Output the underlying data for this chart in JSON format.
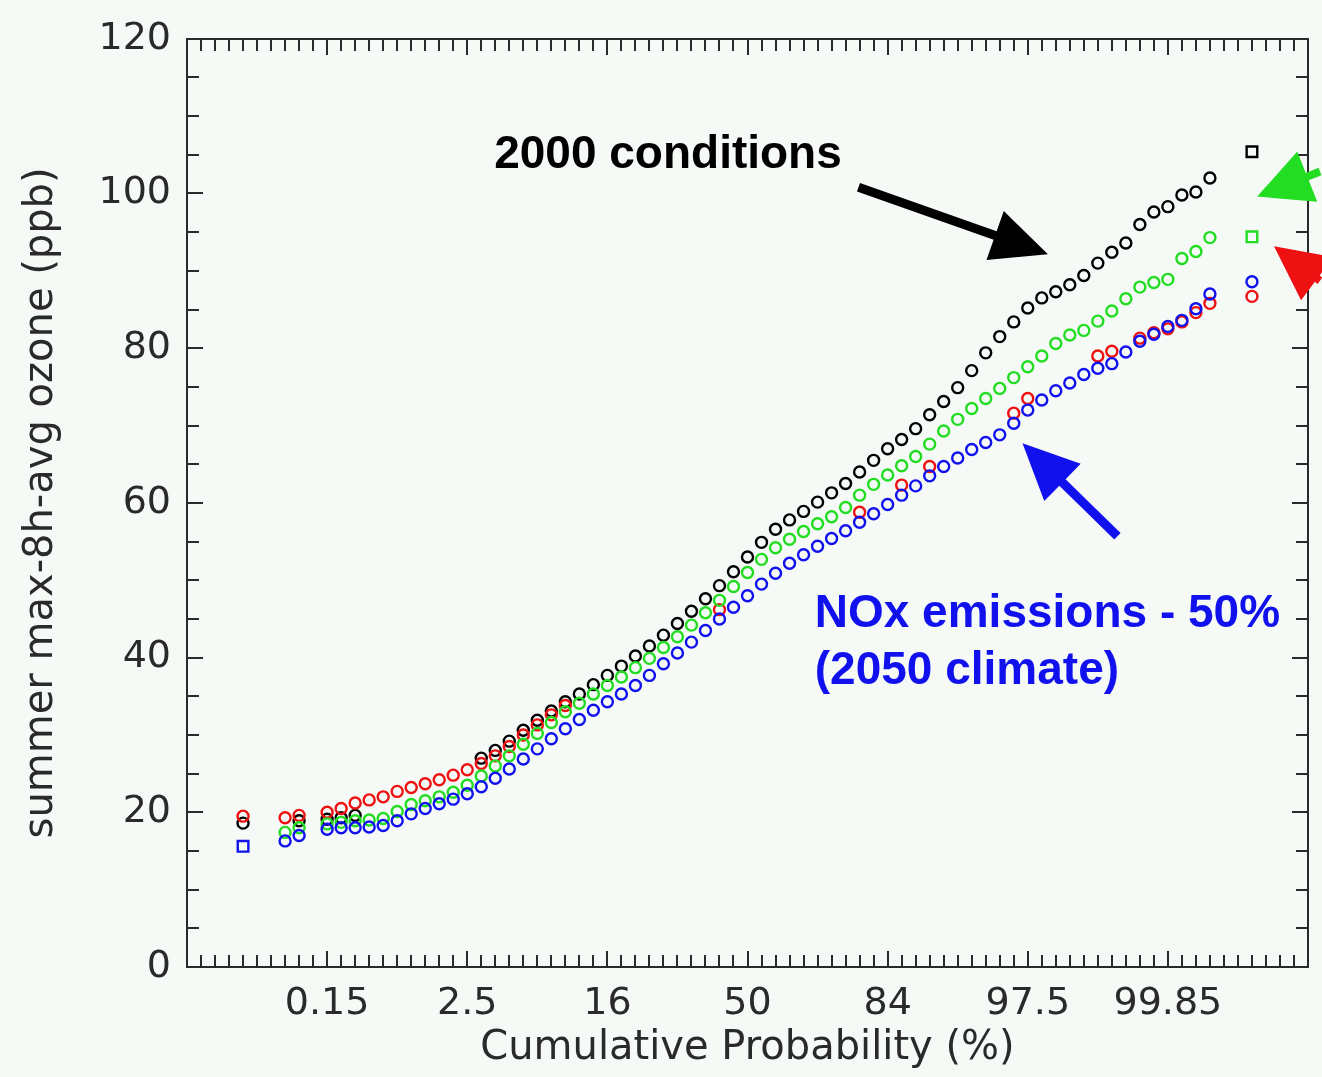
{
  "chart_data": {
    "type": "scatter",
    "xlabel": "Cumulative Probability (%)",
    "ylabel": "summer max-8h-avg ozone (ppb)",
    "marker": "circle",
    "legend": false,
    "categories": [
      null,
      null,
      null,
      null,
      null,
      null,
      null,
      null,
      null,
      null,
      "0.15",
      null,
      null,
      null,
      null,
      null,
      null,
      null,
      null,
      null,
      "2.5",
      null,
      null,
      null,
      null,
      null,
      null,
      null,
      null,
      null,
      "16",
      null,
      null,
      null,
      null,
      null,
      null,
      null,
      null,
      null,
      "50",
      null,
      null,
      null,
      null,
      null,
      null,
      null,
      null,
      null,
      "84",
      null,
      null,
      null,
      null,
      null,
      null,
      null,
      null,
      null,
      "97.5",
      null,
      null,
      null,
      null,
      null,
      null,
      null,
      null,
      null,
      "99.85",
      null,
      null,
      null,
      null,
      null,
      null,
      null,
      null,
      null,
      null
    ],
    "ylim": [
      0,
      120
    ],
    "yticks": [
      0,
      {
        "value": 5,
        "label": null
      },
      {
        "value": 10,
        "label": null
      },
      {
        "value": 15,
        "label": null
      },
      20,
      {
        "value": 25,
        "label": null
      },
      {
        "value": 30,
        "label": null
      },
      {
        "value": 35,
        "label": null
      },
      40,
      {
        "value": 45,
        "label": null
      },
      {
        "value": 50,
        "label": null
      },
      {
        "value": 55,
        "label": null
      },
      60,
      {
        "value": 65,
        "label": null
      },
      {
        "value": 70,
        "label": null
      },
      {
        "value": 75,
        "label": null
      },
      80,
      {
        "value": 85,
        "label": null
      },
      {
        "value": 90,
        "label": null
      },
      {
        "value": 95,
        "label": null
      },
      100,
      {
        "value": 105,
        "label": null
      },
      {
        "value": 110,
        "label": null
      },
      {
        "value": 115,
        "label": null
      },
      120
    ],
    "series": [
      {
        "name": "2000 conditions",
        "color": "#000000",
        "values": [
          null,
          null,
          null,
          null,
          18.6,
          null,
          null,
          null,
          18.9,
          null,
          19.1,
          19.3,
          19.6,
          null,
          null,
          null,
          null,
          null,
          null,
          null,
          null,
          27.0,
          28.0,
          29.2,
          30.6,
          31.9,
          33.1,
          34.3,
          35.3,
          36.5,
          37.7,
          38.9,
          40.2,
          41.5,
          42.9,
          44.4,
          46.0,
          47.6,
          49.3,
          51.1,
          53.0,
          54.9,
          56.6,
          57.8,
          58.9,
          60.1,
          61.3,
          62.5,
          64.0,
          65.5,
          67.0,
          68.2,
          69.6,
          71.4,
          73.1,
          74.9,
          77.1,
          79.4,
          81.5,
          83.4,
          85.2,
          86.5,
          87.3,
          88.2,
          89.4,
          91.0,
          92.4,
          93.6,
          96.0,
          97.6,
          98.3,
          99.8,
          100.2,
          102.0,
          null,
          null,
          null,
          null,
          null,
          null,
          null
        ]
      },
      {
        "color": "#ee1111",
        "values": [
          null,
          null,
          null,
          null,
          19.5,
          null,
          null,
          19.3,
          19.6,
          null,
          20.0,
          20.5,
          21.2,
          21.6,
          22.0,
          22.7,
          23.2,
          23.7,
          24.2,
          24.8,
          25.5,
          26.3,
          27.3,
          28.5,
          30.0,
          31.3,
          32.6,
          33.8,
          null,
          null,
          null,
          null,
          null,
          null,
          null,
          null,
          null,
          null,
          46.2,
          null,
          null,
          null,
          null,
          null,
          null,
          null,
          null,
          null,
          58.8,
          null,
          null,
          62.3,
          null,
          64.7,
          null,
          null,
          null,
          null,
          null,
          71.6,
          73.5,
          null,
          null,
          null,
          null,
          79.0,
          79.6,
          null,
          81.3,
          82.0,
          82.5,
          83.4,
          84.6,
          85.8,
          null,
          null,
          86.7,
          null,
          null,
          null,
          null
        ]
      },
      {
        "color": "#22dd22",
        "values": [
          null,
          null,
          null,
          null,
          null,
          null,
          null,
          17.4,
          18.0,
          null,
          18.5,
          18.7,
          18.9,
          19.0,
          19.2,
          20.1,
          21.0,
          21.5,
          22.0,
          22.6,
          23.5,
          24.7,
          26.0,
          27.3,
          28.8,
          30.2,
          31.6,
          33.0,
          34.1,
          35.3,
          36.4,
          37.5,
          38.7,
          39.9,
          41.3,
          42.7,
          44.2,
          45.8,
          47.4,
          49.2,
          51.0,
          52.7,
          54.2,
          55.3,
          56.3,
          57.3,
          58.2,
          59.4,
          61.0,
          62.4,
          63.6,
          64.8,
          66.0,
          67.6,
          69.3,
          70.8,
          72.2,
          73.5,
          74.8,
          76.2,
          77.6,
          79.0,
          80.6,
          81.7,
          82.3,
          83.5,
          84.8,
          86.4,
          87.9,
          88.5,
          88.9,
          91.6,
          92.5,
          94.3,
          null,
          null,
          null,
          null,
          null,
          null,
          null
        ]
      },
      {
        "name": "NOx emissions - 50% (2050 climate)",
        "color": "#1111ee",
        "values": [
          null,
          null,
          null,
          null,
          null,
          null,
          null,
          16.3,
          17.0,
          null,
          17.8,
          18.0,
          18.0,
          18.1,
          18.3,
          18.9,
          19.8,
          20.5,
          21.1,
          21.7,
          22.4,
          23.3,
          24.4,
          25.6,
          26.9,
          28.2,
          29.5,
          30.8,
          32.0,
          33.2,
          34.3,
          35.3,
          36.4,
          37.7,
          39.2,
          40.6,
          42.0,
          43.5,
          45.0,
          46.5,
          48.0,
          49.5,
          50.9,
          52.2,
          53.3,
          54.4,
          55.4,
          56.4,
          57.5,
          58.6,
          59.8,
          61.0,
          62.2,
          63.5,
          64.7,
          65.8,
          66.9,
          67.8,
          68.8,
          70.3,
          72.0,
          73.3,
          74.5,
          75.5,
          76.6,
          77.4,
          78.0,
          79.5,
          80.9,
          81.8,
          82.8,
          83.6,
          85.1,
          87.0,
          null,
          null,
          88.6,
          null,
          null,
          null,
          null
        ]
      },
      {
        "color": "#000000",
        "marker": "square",
        "values": [
          null,
          null,
          null,
          null,
          null,
          null,
          null,
          null,
          null,
          null,
          null,
          null,
          null,
          null,
          null,
          null,
          null,
          null,
          null,
          null,
          null,
          null,
          null,
          null,
          null,
          null,
          null,
          null,
          null,
          null,
          null,
          null,
          null,
          null,
          null,
          null,
          null,
          null,
          null,
          null,
          null,
          null,
          null,
          null,
          null,
          null,
          null,
          null,
          null,
          null,
          null,
          null,
          null,
          null,
          null,
          null,
          null,
          null,
          null,
          null,
          null,
          null,
          null,
          null,
          null,
          null,
          null,
          null,
          null,
          null,
          null,
          null,
          null,
          null,
          null,
          null,
          105.4,
          null,
          null,
          null,
          null
        ]
      },
      {
        "color": "#22dd22",
        "marker": "square",
        "values": [
          null,
          null,
          null,
          null,
          null,
          null,
          null,
          null,
          null,
          null,
          null,
          null,
          null,
          null,
          null,
          null,
          null,
          null,
          null,
          null,
          null,
          null,
          null,
          null,
          null,
          null,
          null,
          null,
          null,
          null,
          null,
          null,
          null,
          null,
          null,
          null,
          null,
          null,
          null,
          null,
          null,
          null,
          null,
          null,
          null,
          null,
          null,
          null,
          null,
          null,
          null,
          null,
          null,
          null,
          null,
          null,
          null,
          null,
          null,
          null,
          null,
          null,
          null,
          null,
          null,
          null,
          null,
          null,
          null,
          null,
          null,
          null,
          null,
          null,
          null,
          null,
          94.4,
          null,
          null,
          null,
          null
        ]
      },
      {
        "color": "#1111ee",
        "marker": "square",
        "values": [
          null,
          null,
          null,
          null,
          15.6,
          null,
          null,
          null,
          null,
          null,
          null,
          null,
          null,
          null,
          null,
          null,
          null,
          null,
          null,
          null,
          null,
          null,
          null,
          null,
          null,
          null,
          null,
          null,
          null,
          null,
          null,
          null,
          null,
          null,
          null,
          null,
          null,
          null,
          null,
          null,
          null,
          null,
          null,
          null,
          null,
          null,
          null,
          null,
          null,
          null,
          null,
          null,
          null,
          null,
          null,
          null,
          null,
          null,
          null,
          null,
          null,
          null,
          null,
          null,
          null,
          null,
          null,
          null,
          null,
          null,
          null,
          null,
          null,
          null,
          null,
          null,
          null,
          null,
          null,
          null,
          null
        ]
      }
    ]
  }
}
